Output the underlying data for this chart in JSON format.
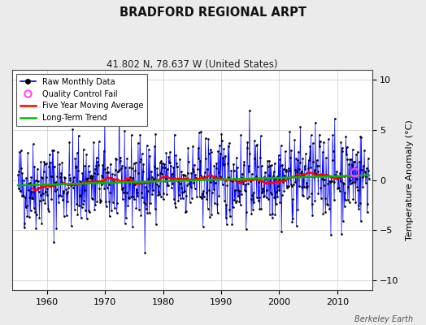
{
  "title": "BRADFORD REGIONAL ARPT",
  "subtitle": "41.802 N, 78.637 W (United States)",
  "ylabel": "Temperature Anomaly (°C)",
  "credit": "Berkeley Earth",
  "ylim": [
    -11,
    11
  ],
  "yticks": [
    -10,
    -5,
    0,
    5,
    10
  ],
  "xlim": [
    1954,
    2016
  ],
  "xticks": [
    1960,
    1970,
    1980,
    1990,
    2000,
    2010
  ],
  "raw_color": "#0000ff",
  "ma_color": "#ff0000",
  "trend_color": "#00bb00",
  "qc_color": "#ff44ff",
  "bg_color": "#ebebeb",
  "plot_bg": "#ffffff",
  "seed": 42
}
